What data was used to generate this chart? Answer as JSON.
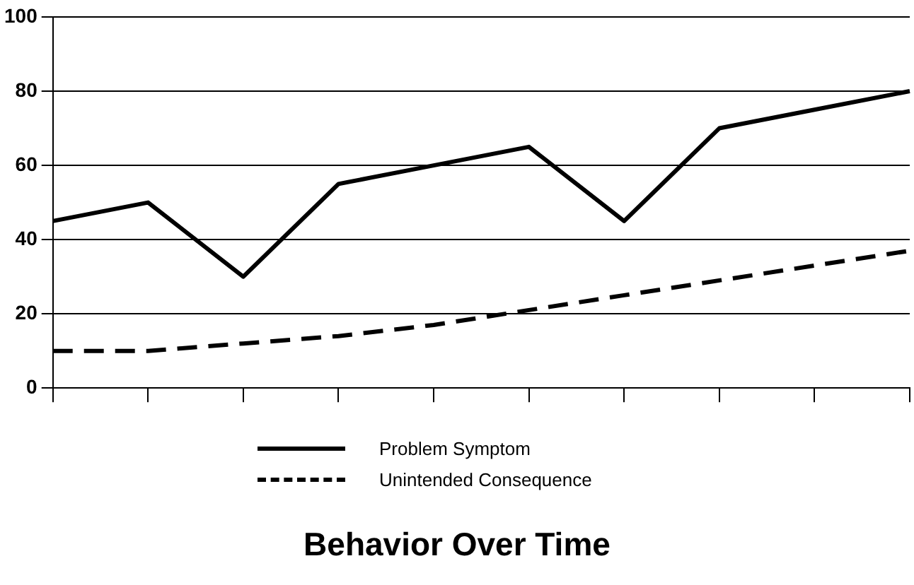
{
  "chart_data": {
    "type": "line",
    "title": "Behavior Over Time",
    "categories": [
      null,
      null,
      null,
      null,
      null,
      null,
      null,
      null,
      null,
      null
    ],
    "series": [
      {
        "name": "Problem Symptom",
        "color": "#000000",
        "line_style": "solid",
        "values": [
          45,
          50,
          30,
          55,
          60,
          65,
          45,
          70,
          75,
          80
        ]
      },
      {
        "name": "Unintended Consequence",
        "color": "#000000",
        "line_style": "dashed",
        "values": [
          10,
          10,
          12,
          14,
          17,
          21,
          25,
          29,
          33,
          37
        ]
      }
    ],
    "ylim": [
      0,
      100
    ],
    "yticks": [
      0,
      20,
      40,
      60,
      80,
      100
    ],
    "grid": "y",
    "legend": "bottom",
    "marker": "none"
  }
}
